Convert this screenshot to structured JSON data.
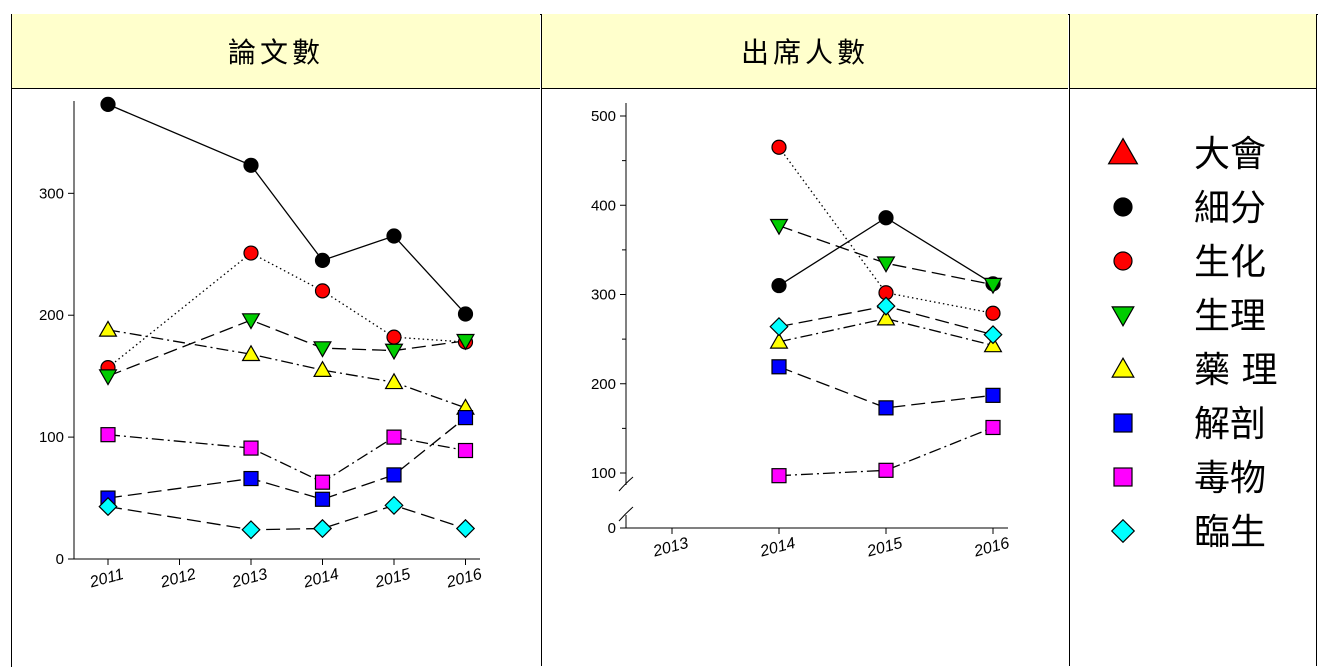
{
  "headers": {
    "papers": "論文數",
    "attendance": "出席人數",
    "legend": ""
  },
  "colors": {
    "大會": "#ff0000",
    "細分": "#000000",
    "生化": "#ff0000",
    "生理": "#00cc00",
    "藥理": "#ffff00",
    "解剖": "#0000ff",
    "毒物": "#ff00ff",
    "臨生": "#00ffff"
  },
  "legend": [
    {
      "label": "大會",
      "marker": "triangle-up",
      "color": "#ff0000"
    },
    {
      "label": "細分",
      "marker": "circle",
      "color": "#000000"
    },
    {
      "label": "生化",
      "marker": "circle",
      "color": "#ff0000"
    },
    {
      "label": "生理",
      "marker": "triangle-down",
      "color": "#00cc00"
    },
    {
      "label": "藥 理",
      "marker": "triangle-up",
      "color": "#ffff00"
    },
    {
      "label": "解剖",
      "marker": "square",
      "color": "#0000ff"
    },
    {
      "label": "毒物",
      "marker": "square",
      "color": "#ff00ff"
    },
    {
      "label": "臨生",
      "marker": "diamond",
      "color": "#00ffff"
    }
  ],
  "chart_data": [
    {
      "type": "line",
      "title": "論文數",
      "categories": [
        "2011",
        "2012",
        "2013",
        "2014",
        "2015",
        "2016"
      ],
      "ylim": [
        0,
        370
      ],
      "yticks": [
        "0",
        "100",
        "200",
        "300"
      ],
      "series": [
        {
          "name": "細分",
          "marker": "circle",
          "color": "#000000",
          "dash": "solid",
          "values": [
            373,
            null,
            323,
            245,
            265,
            201
          ]
        },
        {
          "name": "生化",
          "marker": "circle",
          "color": "#ff0000",
          "dash": "dotted",
          "values": [
            157,
            null,
            251,
            220,
            182,
            178
          ]
        },
        {
          "name": "生理",
          "marker": "triangle-down",
          "color": "#00cc00",
          "dash": "dashed",
          "values": [
            150,
            null,
            196,
            173,
            171,
            179
          ]
        },
        {
          "name": "藥理",
          "marker": "triangle-up",
          "color": "#ffff00",
          "dash": "dash-dot",
          "values": [
            188,
            null,
            168,
            155,
            145,
            124
          ]
        },
        {
          "name": "解剖",
          "marker": "square",
          "color": "#0000ff",
          "dash": "dashed",
          "values": [
            50,
            null,
            66,
            49,
            69,
            116
          ]
        },
        {
          "name": "毒物",
          "marker": "square",
          "color": "#ff00ff",
          "dash": "dash-dot",
          "values": [
            102,
            null,
            91,
            63,
            100,
            89
          ]
        },
        {
          "name": "臨生",
          "marker": "diamond",
          "color": "#00ffff",
          "dash": "dashed",
          "values": [
            43,
            null,
            24,
            25,
            44,
            25
          ]
        }
      ]
    },
    {
      "type": "line",
      "title": "出席人數",
      "categories": [
        "2013",
        "2014",
        "2015",
        "2016"
      ],
      "ylim": [
        0,
        500
      ],
      "yticks": [
        "0",
        "100",
        "200",
        "300",
        "400",
        "500"
      ],
      "axis_break": true,
      "series": [
        {
          "name": "細分",
          "marker": "circle",
          "color": "#000000",
          "dash": "solid",
          "values": [
            null,
            310,
            386,
            312
          ]
        },
        {
          "name": "生化",
          "marker": "circle",
          "color": "#ff0000",
          "dash": "dotted",
          "values": [
            null,
            465,
            302,
            279
          ]
        },
        {
          "name": "生理",
          "marker": "triangle-down",
          "color": "#00cc00",
          "dash": "dashed",
          "values": [
            null,
            377,
            335,
            311
          ]
        },
        {
          "name": "藥理",
          "marker": "triangle-up",
          "color": "#ffff00",
          "dash": "dash-dot",
          "values": [
            null,
            247,
            273,
            243
          ]
        },
        {
          "name": "解剖",
          "marker": "square",
          "color": "#0000ff",
          "dash": "dashed",
          "values": [
            null,
            219,
            173,
            187
          ]
        },
        {
          "name": "毒物",
          "marker": "square",
          "color": "#ff00ff",
          "dash": "dash-dot",
          "values": [
            null,
            97,
            103,
            151
          ]
        },
        {
          "name": "臨生",
          "marker": "diamond",
          "color": "#00ffff",
          "dash": "dashed",
          "values": [
            null,
            264,
            287,
            255
          ]
        }
      ]
    }
  ]
}
